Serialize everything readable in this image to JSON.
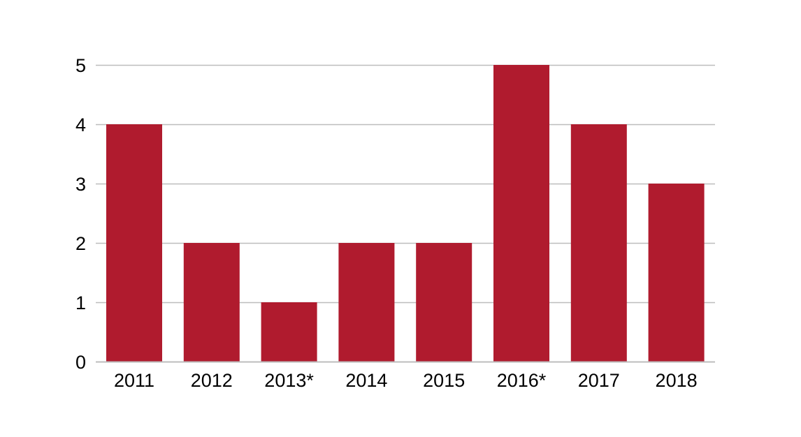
{
  "chart_data": {
    "type": "bar",
    "title": "",
    "xlabel": "",
    "ylabel": "",
    "categories": [
      "2011",
      "2012",
      "2013*",
      "2014",
      "2015",
      "2016*",
      "2017",
      "2018"
    ],
    "values": [
      4,
      2,
      1,
      2,
      2,
      5,
      4,
      3
    ],
    "ylim": [
      0,
      5
    ],
    "yticks": [
      0,
      1,
      2,
      3,
      4,
      5
    ],
    "grid": true,
    "legend": "none",
    "bar_color": "#B01B2E",
    "grid_color": "#BDBDBD"
  }
}
